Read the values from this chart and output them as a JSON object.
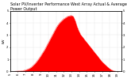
{
  "title": "Solar PV/Inverter Performance West Array Actual & Average Power Output",
  "ylabel": "kW",
  "background_color": "#ffffff",
  "plot_bg_color": "#ffffff",
  "grid_color": "#aaaaaa",
  "bar_color": "#ff0000",
  "hours": [
    5,
    5.25,
    5.5,
    5.75,
    6,
    6.25,
    6.5,
    6.75,
    7,
    7.25,
    7.5,
    7.75,
    8,
    8.25,
    8.5,
    8.75,
    9,
    9.25,
    9.5,
    9.75,
    10,
    10.25,
    10.5,
    10.75,
    11,
    11.25,
    11.5,
    11.75,
    12,
    12.25,
    12.5,
    12.75,
    13,
    13.25,
    13.5,
    13.75,
    14,
    14.25,
    14.5,
    14.75,
    15,
    15.25,
    15.5,
    15.75,
    16,
    16.25,
    16.5,
    16.75,
    17,
    17.25,
    17.5,
    17.75,
    18,
    18.25,
    18.5,
    18.75,
    19,
    19.25,
    19.5
  ],
  "actual_power": [
    0,
    0,
    0.01,
    0.02,
    0.03,
    0.04,
    0.06,
    0.08,
    0.12,
    0.18,
    0.25,
    0.35,
    0.5,
    0.65,
    0.85,
    1.05,
    1.3,
    1.55,
    1.8,
    2.1,
    2.4,
    2.7,
    3.0,
    3.3,
    3.6,
    3.85,
    4.05,
    4.2,
    4.35,
    4.45,
    4.55,
    4.6,
    4.62,
    4.55,
    4.2,
    3.7,
    3.3,
    3.0,
    2.8,
    2.6,
    2.4,
    2.2,
    2.0,
    1.8,
    1.6,
    1.4,
    1.2,
    1.0,
    0.8,
    0.65,
    0.5,
    0.35,
    0.22,
    0.12,
    0.06,
    0.02,
    0.01,
    0,
    0
  ],
  "avg_power": [
    0,
    0,
    0.01,
    0.02,
    0.04,
    0.05,
    0.07,
    0.1,
    0.14,
    0.2,
    0.28,
    0.38,
    0.55,
    0.7,
    0.9,
    1.1,
    1.35,
    1.6,
    1.85,
    2.15,
    2.45,
    2.75,
    3.05,
    3.35,
    3.65,
    3.9,
    4.1,
    4.25,
    4.4,
    4.5,
    4.6,
    4.65,
    4.67,
    4.6,
    4.25,
    3.75,
    3.35,
    3.05,
    2.85,
    2.65,
    2.45,
    2.25,
    2.05,
    1.85,
    1.65,
    1.45,
    1.25,
    1.05,
    0.85,
    0.7,
    0.55,
    0.4,
    0.27,
    0.15,
    0.08,
    0.03,
    0.01,
    0,
    0
  ],
  "ylim": [
    0,
    5.0
  ],
  "xlim": [
    5.0,
    19.5
  ],
  "yticks": [
    0,
    1,
    2,
    3,
    4,
    5
  ],
  "xtick_positions": [
    5,
    6,
    7,
    8,
    9,
    10,
    11,
    12,
    13,
    14,
    15,
    16,
    17,
    18,
    19
  ],
  "xtick_labels": [
    "5",
    "6",
    "7",
    "8",
    "9",
    "10",
    "11",
    "12",
    "13",
    "14",
    "15",
    "16",
    "17",
    "18",
    "19"
  ],
  "title_fontsize": 3.5,
  "label_fontsize": 3.0,
  "tick_fontsize": 2.8
}
